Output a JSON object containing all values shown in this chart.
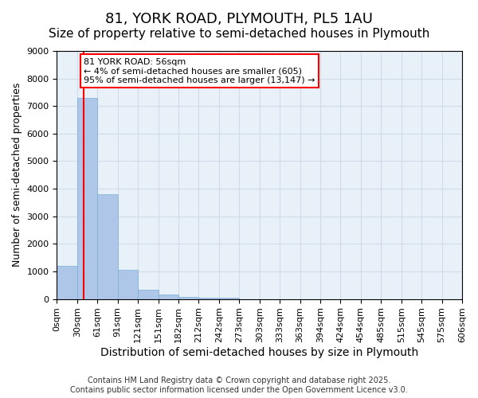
{
  "title1": "81, YORK ROAD, PLYMOUTH, PL5 1AU",
  "title2": "Size of property relative to semi-detached houses in Plymouth",
  "xlabel": "Distribution of semi-detached houses by size in Plymouth",
  "ylabel": "Number of semi-detached properties",
  "bar_values": [
    1200,
    7300,
    3800,
    1050,
    330,
    160,
    70,
    50,
    40,
    0,
    0,
    0,
    0,
    0,
    0,
    0,
    0,
    0,
    0,
    0
  ],
  "bin_labels": [
    "0sqm",
    "30sqm",
    "61sqm",
    "91sqm",
    "121sqm",
    "151sqm",
    "182sqm",
    "212sqm",
    "242sqm",
    "273sqm",
    "303sqm",
    "333sqm",
    "363sqm",
    "394sqm",
    "424sqm",
    "454sqm",
    "485sqm",
    "515sqm",
    "545sqm",
    "575sqm",
    "606sqm"
  ],
  "bar_color": "#aec6e8",
  "bar_edge_color": "#7aaed6",
  "vline_color": "red",
  "vline_x": 0.83,
  "annotation_text": "81 YORK ROAD: 56sqm\n← 4% of semi-detached houses are smaller (605)\n95% of semi-detached houses are larger (13,147) →",
  "annotation_box_color": "white",
  "annotation_box_edge": "red",
  "ylim": [
    0,
    9000
  ],
  "yticks": [
    0,
    1000,
    2000,
    3000,
    4000,
    5000,
    6000,
    7000,
    8000,
    9000
  ],
  "grid_color": "#d0dce8",
  "bg_color": "#e8f0f8",
  "footer_text": "Contains HM Land Registry data © Crown copyright and database right 2025.\nContains public sector information licensed under the Open Government Licence v3.0.",
  "title_fontsize": 13,
  "subtitle_fontsize": 11,
  "ylabel_fontsize": 9,
  "xlabel_fontsize": 10,
  "tick_fontsize": 8,
  "annotation_fontsize": 8,
  "footer_fontsize": 7
}
